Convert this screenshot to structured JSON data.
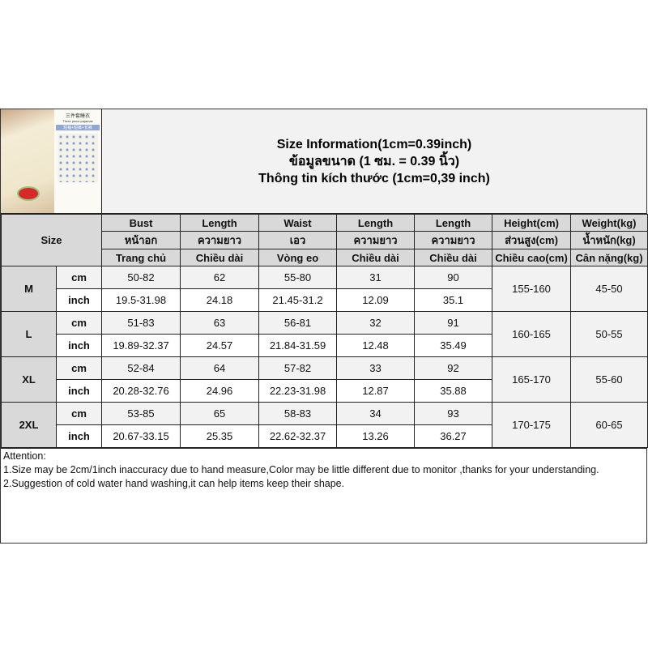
{
  "product_image": {
    "caption_cn": "三件套睡衣",
    "caption_en": "Three piece pajamas",
    "tag": "短袖+短裤+长裤"
  },
  "title": {
    "en": "Size Information(1cm=0.39inch)",
    "th": "ข้อมูลขนาด (1 ซม. = 0.39 นิ้ว)",
    "vi": "Thông tin kích thước (1cm=0,39 inch)"
  },
  "size_label": "Size",
  "columns": [
    {
      "en": "Bust",
      "th": "หน้าอก",
      "vi": "Trang chủ"
    },
    {
      "en": "Length",
      "th": "ความยาว",
      "vi": "Chiều dài"
    },
    {
      "en": "Waist",
      "th": "เอว",
      "vi": "Vòng eo"
    },
    {
      "en": "Length",
      "th": "ความยาว",
      "vi": "Chiều dài"
    },
    {
      "en": "Length",
      "th": "ความยาว",
      "vi": "Chiều dài"
    },
    {
      "en": "Height(cm)",
      "th": "ส่วนสูง(cm)",
      "vi": "Chiều cao(cm)"
    },
    {
      "en": "Weight(kg)",
      "th": "น้ำหนัก(kg)",
      "vi": "Cân nặng(kg)"
    }
  ],
  "units": {
    "cm": "cm",
    "inch": "inch"
  },
  "rows": [
    {
      "size": "M",
      "cm": [
        "50-82",
        "62",
        "55-80",
        "31",
        "90"
      ],
      "inch": [
        "19.5-31.98",
        "24.18",
        "21.45-31.2",
        "12.09",
        "35.1"
      ],
      "height": "155-160",
      "weight": "45-50"
    },
    {
      "size": "L",
      "cm": [
        "51-83",
        "63",
        "56-81",
        "32",
        "91"
      ],
      "inch": [
        "19.89-32.37",
        "24.57",
        "21.84-31.59",
        "12.48",
        "35.49"
      ],
      "height": "160-165",
      "weight": "50-55"
    },
    {
      "size": "XL",
      "cm": [
        "52-84",
        "64",
        "57-82",
        "33",
        "92"
      ],
      "inch": [
        "20.28-32.76",
        "24.96",
        "22.23-31.98",
        "12.87",
        "35.88"
      ],
      "height": "165-170",
      "weight": "55-60"
    },
    {
      "size": "2XL",
      "cm": [
        "53-85",
        "65",
        "58-83",
        "34",
        "93"
      ],
      "inch": [
        "20.67-33.15",
        "25.35",
        "22.62-32.37",
        "13.26",
        "36.27"
      ],
      "height": "170-175",
      "weight": "60-65"
    }
  ],
  "notes": [
    "Attention:",
    "1.Size may be 2cm/1inch inaccuracy due to hand measure,Color may be little different due to monitor ,thanks for your understanding.",
    "2.Suggestion of cold water hand washing,it can help items keep their shape."
  ]
}
